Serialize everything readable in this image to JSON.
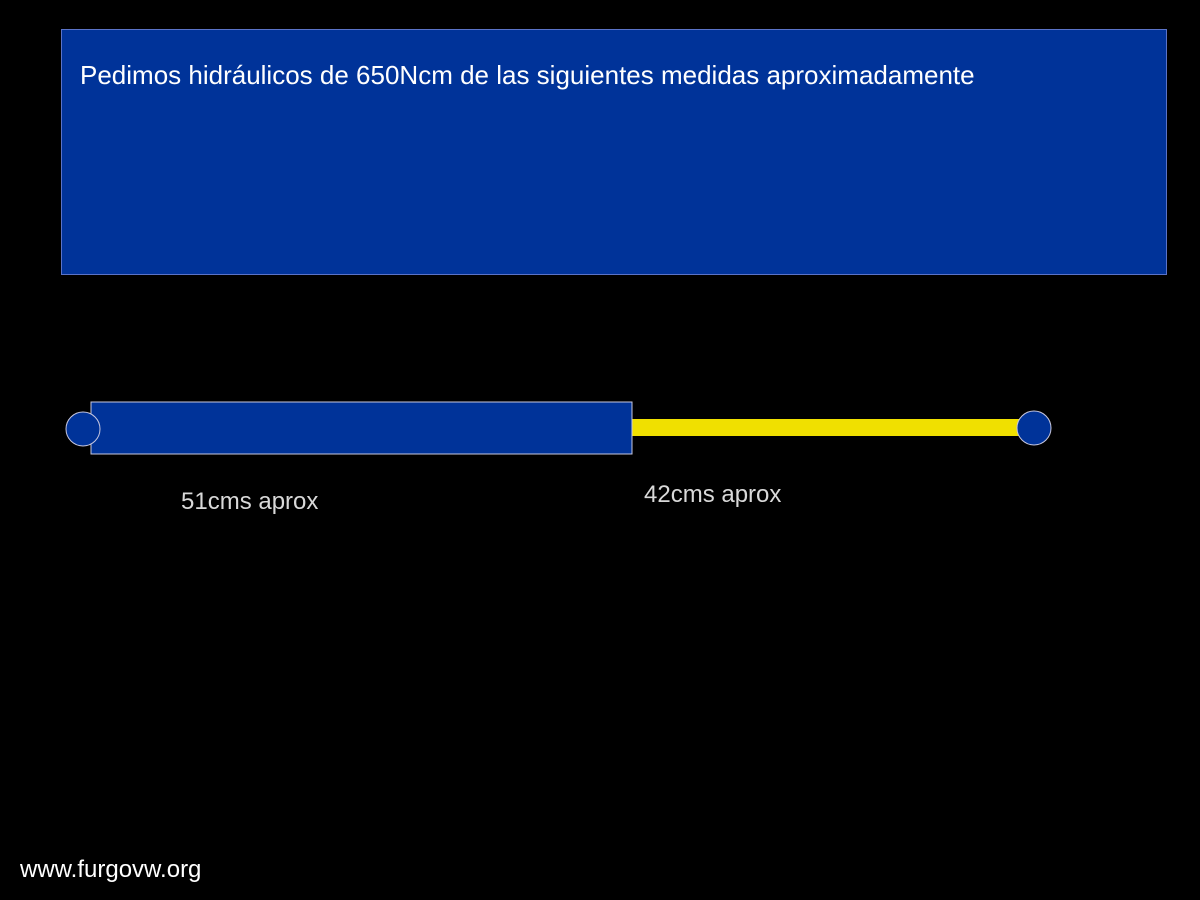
{
  "slide": {
    "title": "Pedimos hidráulicos de 650Ncm de las siguientes medidas aproximadamente",
    "watermark": "www.furgovw.org"
  },
  "diagram": {
    "cylinder_label": "51cms aprox",
    "rod_label": "42cms aprox",
    "cylinder_length_cm": 51,
    "rod_length_cm": 42,
    "colors": {
      "background": "#000000",
      "title_box": "#003399",
      "cylinder": "#003399",
      "rod": "#f0e000",
      "end_caps": "#003399",
      "outline": "#c8c8e0"
    }
  }
}
